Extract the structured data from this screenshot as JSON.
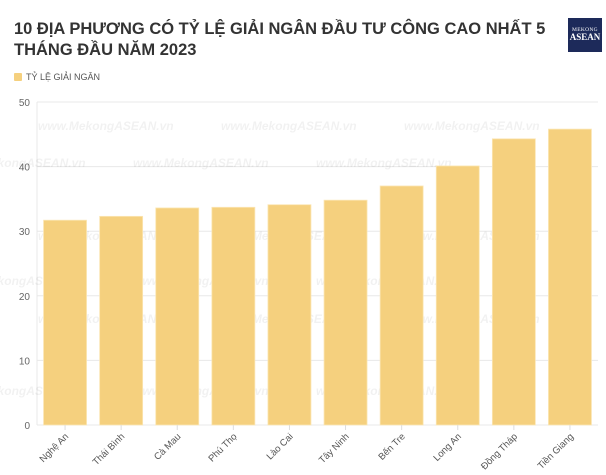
{
  "title": "10 ĐỊA PHƯƠNG CÓ TỶ LỆ GIẢI NGÂN ĐẦU TƯ CÔNG CAO NHẤT 5 THÁNG ĐẦU NĂM 2023",
  "logo": {
    "line1": "MEKONG",
    "line2": "ASEAN"
  },
  "watermark": "www.MekongASEAN.vn",
  "chart_data": {
    "type": "bar",
    "title": "10 ĐỊA PHƯƠNG CÓ TỶ LỆ GIẢI NGÂN ĐẦU TƯ CÔNG CAO NHẤT 5 THÁNG ĐẦU NĂM 2023",
    "categories": [
      "Nghệ An",
      "Thái Bình",
      "Cà Mau",
      "Phú Thọ",
      "Lào Cai",
      "Tây Ninh",
      "Bến Tre",
      "Long An",
      "Đồng Tháp",
      "Tiền Giang"
    ],
    "series": [
      {
        "name": "TỶ LỆ GIẢI NGÂN",
        "values": [
          31.7,
          32.3,
          33.6,
          33.7,
          34.1,
          34.8,
          37.0,
          40.1,
          44.3,
          45.8
        ],
        "color": "#f5d07e"
      }
    ],
    "ylim": [
      0,
      50
    ],
    "yticks": [
      0,
      10,
      20,
      30,
      40,
      50
    ],
    "grid": true,
    "legend": "top-left",
    "xlabel": "",
    "ylabel": ""
  }
}
